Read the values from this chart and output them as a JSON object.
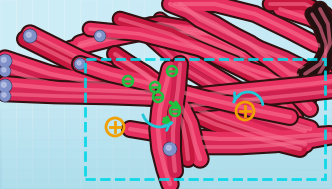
{
  "bg_color_top": "#b8e8f0",
  "bg_color_bottom": "#d0f0f8",
  "bg_color_right": "#e8f8fc",
  "tube_color": "#e83060",
  "tube_dark": "#c01840",
  "tube_highlight": "#f87090",
  "tube_end_color": "#8090c8",
  "ion_plus_color": "#f0a000",
  "ion_minus_color": "#20c040",
  "ion_minus_border": "#10a030",
  "arrow_color": "#20c040",
  "cyan_arrow_color": "#20c8d8",
  "dashed_box_color": "#00d8e8",
  "shadow_color": "#404040",
  "figsize": [
    3.32,
    1.89
  ],
  "dpi": 100
}
